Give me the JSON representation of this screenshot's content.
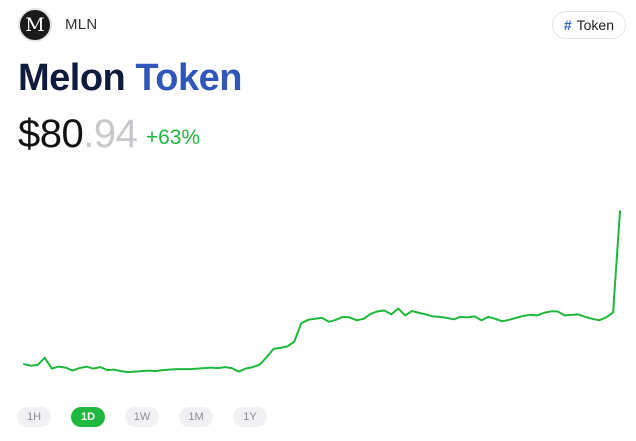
{
  "header": {
    "logo_letter": "M",
    "symbol": "MLN",
    "tag": {
      "icon": "hash-icon",
      "icon_glyph": "#",
      "label": "Token"
    }
  },
  "title": {
    "main": "Melon",
    "accent": "Token"
  },
  "price": {
    "whole": "$80",
    "cents": ".94",
    "change": "+63%"
  },
  "colors": {
    "accent": "#2f56b8",
    "positive": "#1fb83e",
    "title": "#0f1b3d"
  },
  "range_tabs": [
    {
      "label": "1H",
      "active": false
    },
    {
      "label": "1D",
      "active": true
    },
    {
      "label": "1W",
      "active": false
    },
    {
      "label": "1M",
      "active": false
    },
    {
      "label": "1Y",
      "active": false
    }
  ],
  "chart_data": {
    "type": "line",
    "title": "",
    "xlabel": "",
    "ylabel": "",
    "grid": false,
    "legend": "none",
    "series": [
      {
        "color": "#1fb83e",
        "values": [
          49.9,
          49.6,
          49.8,
          51.2,
          49.0,
          49.4,
          49.2,
          48.6,
          49.1,
          49.4,
          49.0,
          49.3,
          48.7,
          48.8,
          48.5,
          48.3,
          48.4,
          48.5,
          48.6,
          48.5,
          48.7,
          48.8,
          48.9,
          48.9,
          48.9,
          49.0,
          49.1,
          49.2,
          49.1,
          49.3,
          49.1,
          48.4,
          49.0,
          49.3,
          49.8,
          51.3,
          53.0,
          53.2,
          53.5,
          54.5,
          58.2,
          58.9,
          59.1,
          59.3,
          58.5,
          58.9,
          59.5,
          59.4,
          58.8,
          59.1,
          60.1,
          60.6,
          60.8,
          60.0,
          61.2,
          59.8,
          60.7,
          60.3,
          60.0,
          59.6,
          59.5,
          59.3,
          59.0,
          59.5,
          59.4,
          59.6,
          58.8,
          59.5,
          59.1,
          58.6,
          58.9,
          59.3,
          59.7,
          59.9,
          59.8,
          60.3,
          60.6,
          60.6,
          59.8,
          59.9,
          60.0,
          59.5,
          59.1,
          58.8,
          59.4,
          60.4,
          80.94
        ],
        "x": [
          0,
          1,
          2,
          3,
          4,
          5,
          6,
          7,
          8,
          9,
          10,
          11,
          12,
          13,
          14,
          15,
          16,
          17,
          18,
          19,
          20,
          21,
          22,
          23,
          24,
          25,
          26,
          27,
          28,
          29,
          30,
          31,
          32,
          33,
          34,
          35,
          36,
          37,
          38,
          39,
          40,
          41,
          42,
          43,
          44,
          45,
          46,
          47,
          48,
          49,
          50,
          51,
          52,
          53,
          54,
          55,
          56,
          57,
          58,
          59,
          60,
          61,
          62,
          63,
          64,
          65,
          66,
          67,
          68,
          69,
          70,
          71,
          72,
          73,
          74,
          75,
          76,
          77,
          78,
          79,
          80,
          81,
          82,
          83,
          84,
          85,
          86
        ]
      }
    ],
    "ylim": [
      47.5,
      82
    ]
  }
}
